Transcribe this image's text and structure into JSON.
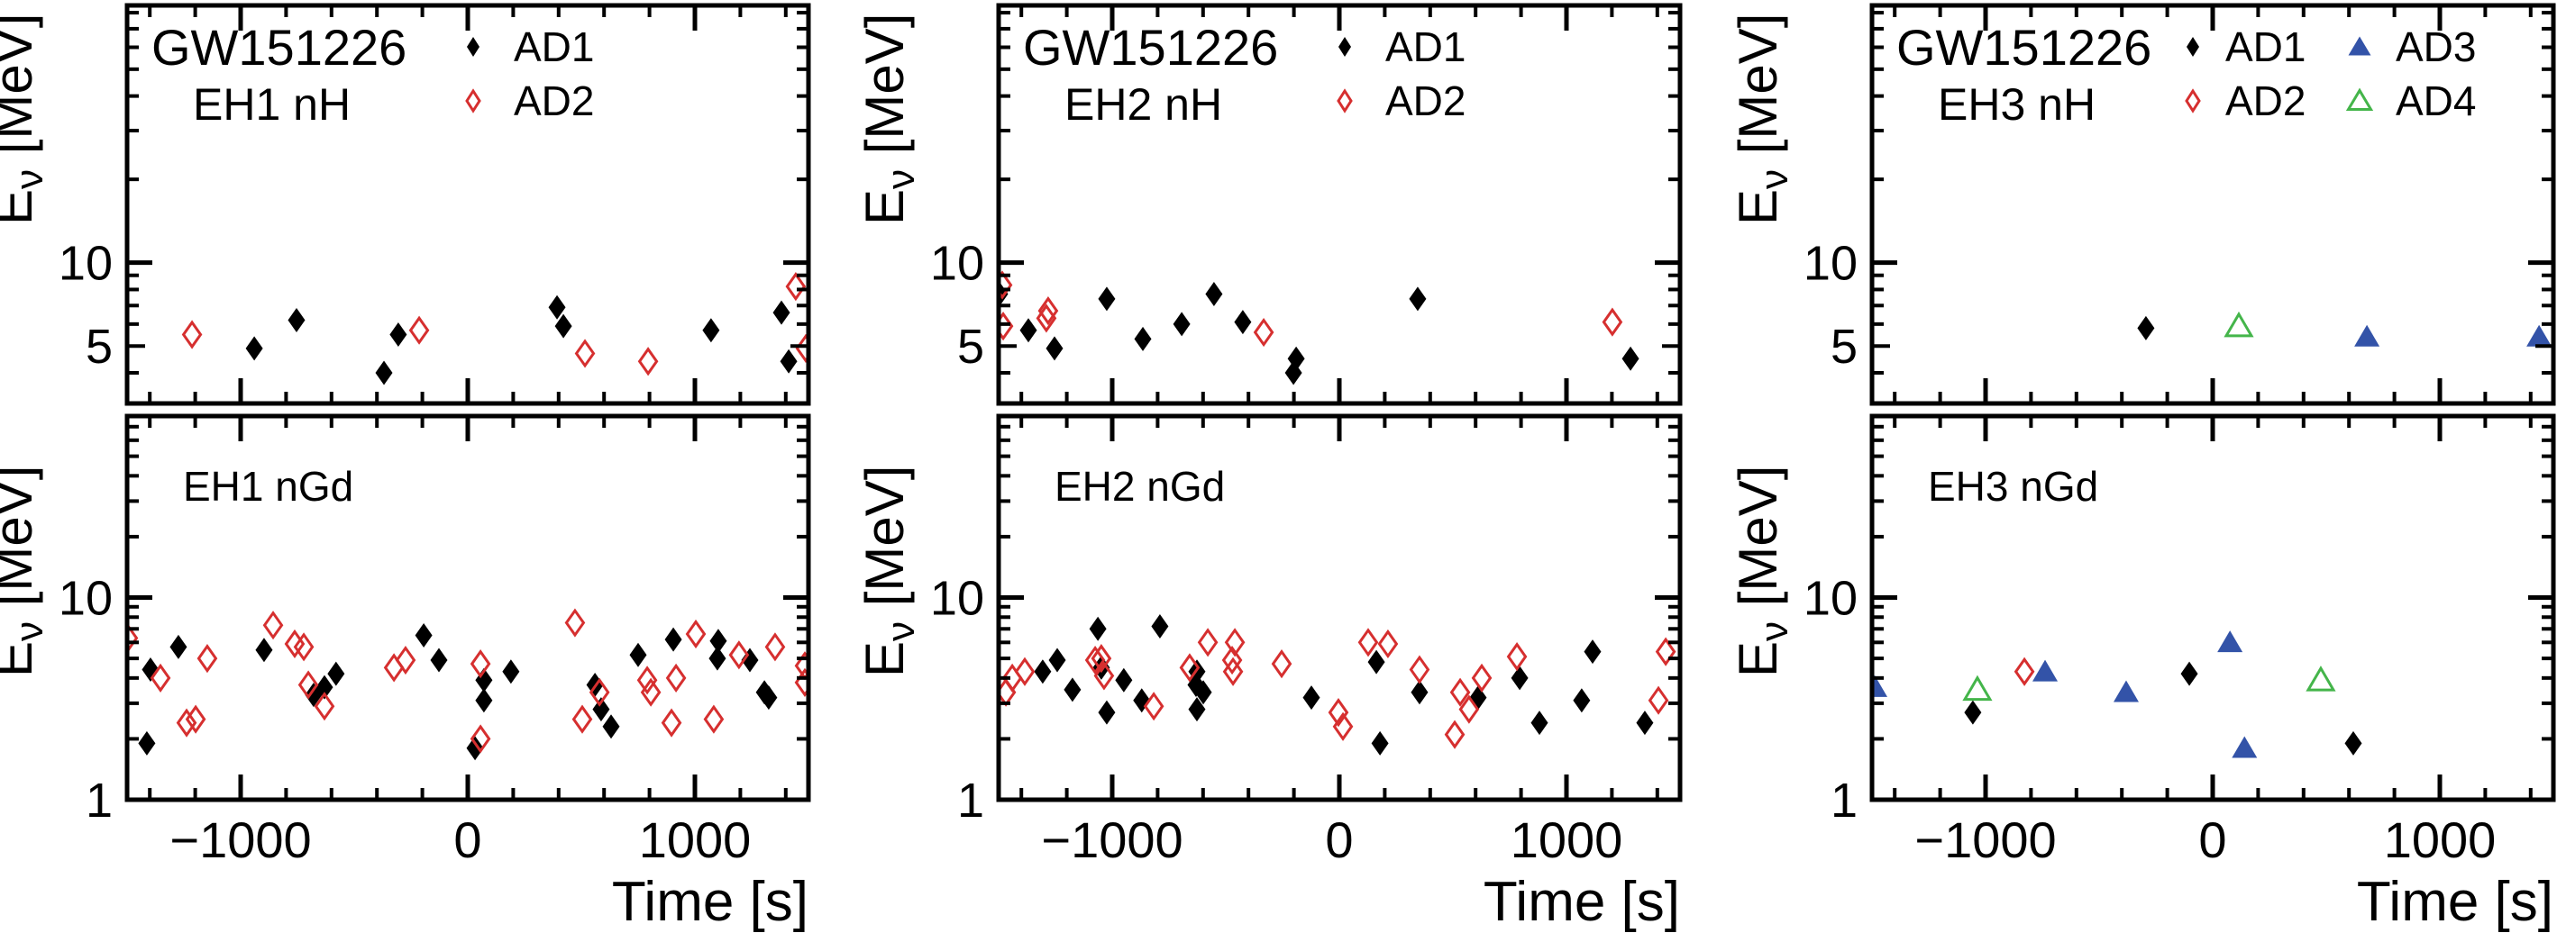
{
  "figure": {
    "event": "GW151226",
    "event_color": "#3E5CC0",
    "xlabel": "Time [s]",
    "ylabel": {
      "base": "E",
      "sub": "ν",
      "unit": " [MeV]"
    },
    "background": "#FFFFFF",
    "frame_color": "#000000"
  },
  "legend": {
    "entries": [
      {
        "detector": "AD1",
        "marker": "filled-diamond",
        "color": "#000000"
      },
      {
        "detector": "AD2",
        "marker": "open-diamond",
        "color": "#D62F2F"
      },
      {
        "detector": "AD3",
        "marker": "filled-triangle",
        "color": "#3353A8"
      },
      {
        "detector": "AD4",
        "marker": "open-triangle",
        "color": "#44B54A"
      }
    ]
  },
  "chart_data": {
    "type": "scatter",
    "title": "GW151226",
    "xlabel": "Time [s]",
    "ylabel": "Eν [MeV]",
    "x_range": [
      -1500,
      1500
    ],
    "x_major_ticks": [
      -1000,
      0,
      1000
    ],
    "x_tick_labels": [
      "−1000",
      "0",
      "1000"
    ],
    "x_minor_step": 200,
    "y_scale": "log",
    "rows": {
      "top": {
        "y_range": [
          3.1,
          85
        ]
      },
      "bottom": {
        "y_range": [
          1,
          79
        ]
      }
    },
    "markers": {
      "AD1": {
        "shape": "diamond",
        "fill": "#000000",
        "stroke": "none",
        "stroke_width": 0
      },
      "AD2": {
        "shape": "diamond",
        "fill": "none",
        "stroke": "#D62F2F",
        "stroke_width": 3
      },
      "AD3": {
        "shape": "triangle",
        "fill": "#3353A8",
        "stroke": "none",
        "stroke_width": 0
      },
      "AD4": {
        "shape": "triangle",
        "fill": "none",
        "stroke": "#44B54A",
        "stroke_width": 3
      }
    },
    "panels": [
      {
        "id": "eh1-nh",
        "hall_label": "EH1 nH",
        "row": "top",
        "col": 0,
        "show_header": true,
        "y_tick_labels": [
          {
            "value": 10,
            "label": "10"
          },
          {
            "value": 5,
            "label": "5"
          }
        ],
        "legend_columns": [
          {
            "marker_dx": 384,
            "text_dx": 429,
            "entries": [
              "AD1",
              "AD2"
            ]
          }
        ],
        "series": [
          {
            "detector": "AD1",
            "points": [
              [
                -940,
                4.9
              ],
              [
                -754,
                6.2
              ],
              [
                -369,
                4.0
              ],
              [
                -306,
                5.5
              ],
              [
                393,
                6.9
              ],
              [
                421,
                5.9
              ],
              [
                1071,
                5.7
              ],
              [
                1381,
                6.6
              ],
              [
                1413,
                4.4
              ]
            ]
          },
          {
            "detector": "AD2",
            "points": [
              [
                -1214,
                5.5
              ],
              [
                -214,
                5.7
              ],
              [
                516,
                4.7
              ],
              [
                794,
                4.4
              ],
              [
                1444,
                8.2
              ],
              [
                1488,
                4.9
              ]
            ]
          }
        ]
      },
      {
        "id": "eh2-nh",
        "hall_label": "EH2 nH",
        "row": "top",
        "col": 1,
        "show_header": true,
        "y_tick_labels": [
          {
            "value": 10,
            "label": "10"
          },
          {
            "value": 5,
            "label": "5"
          }
        ],
        "legend_columns": [
          {
            "marker_dx": 384,
            "text_dx": 429,
            "entries": [
              "AD1",
              "AD2"
            ]
          }
        ],
        "series": [
          {
            "detector": "AD1",
            "points": [
              [
                -1496,
                7.7
              ],
              [
                -1369,
                5.7
              ],
              [
                -1254,
                4.9
              ],
              [
                -1024,
                7.4
              ],
              [
                -865,
                5.3
              ],
              [
                -694,
                6.0
              ],
              [
                -552,
                7.7
              ],
              [
                -425,
                6.1
              ],
              [
                -202,
                4.0
              ],
              [
                -190,
                4.5
              ],
              [
                345,
                7.4
              ],
              [
                1282,
                4.5
              ]
            ]
          },
          {
            "detector": "AD2",
            "points": [
              [
                -1484,
                8.3
              ],
              [
                -1480,
                5.9
              ],
              [
                -1290,
                6.3
              ],
              [
                -1282,
                6.7
              ],
              [
                -333,
                5.6
              ],
              [
                1202,
                6.1
              ]
            ]
          }
        ]
      },
      {
        "id": "eh3-nh",
        "hall_label": "EH3 nH",
        "row": "top",
        "col": 2,
        "show_header": true,
        "y_tick_labels": [
          {
            "value": 10,
            "label": "10"
          },
          {
            "value": 5,
            "label": "5"
          }
        ],
        "legend_columns": [
          {
            "marker_dx": 356,
            "text_dx": 392,
            "entries": [
              "AD1",
              "AD2"
            ]
          },
          {
            "marker_dx": 541,
            "text_dx": 581,
            "entries": [
              "AD3",
              "AD4"
            ]
          }
        ],
        "series": [
          {
            "detector": "AD1",
            "points": [
              [
                -294,
                5.8
              ]
            ]
          },
          {
            "detector": "AD3",
            "points": [
              [
                679,
                5.4
              ],
              [
                1437,
                5.4
              ]
            ]
          },
          {
            "detector": "AD4",
            "points": [
              [
                115,
                5.9
              ]
            ]
          }
        ]
      },
      {
        "id": "eh1-ngd",
        "hall_label": "EH1 nGd",
        "row": "bottom",
        "col": 0,
        "show_header": false,
        "y_tick_labels": [
          {
            "value": 10,
            "label": "10"
          },
          {
            "value": 1,
            "label": "1"
          }
        ],
        "legend_columns": [],
        "series": [
          {
            "detector": "AD1",
            "points": [
              [
                -1413,
                1.9
              ],
              [
                -1397,
                4.4
              ],
              [
                -1274,
                5.7
              ],
              [
                -897,
                5.5
              ],
              [
                -679,
                3.3
              ],
              [
                -631,
                3.6
              ],
              [
                -580,
                4.2
              ],
              [
                -194,
                6.5
              ],
              [
                -127,
                4.9
              ],
              [
                32,
                1.8
              ],
              [
                71,
                3.9
              ],
              [
                71,
                3.1
              ],
              [
                190,
                4.3
              ],
              [
                560,
                3.7
              ],
              [
                587,
                2.8
              ],
              [
                631,
                2.3
              ],
              [
                750,
                5.2
              ],
              [
                905,
                6.2
              ],
              [
                1099,
                5.0
              ],
              [
                1103,
                6.1
              ],
              [
                1242,
                4.9
              ],
              [
                1306,
                3.4
              ],
              [
                1325,
                3.2
              ]
            ]
          },
          {
            "detector": "AD2",
            "points": [
              [
                -1496,
                6.3
              ],
              [
                -1353,
                4.0
              ],
              [
                -1238,
                2.4
              ],
              [
                -1198,
                2.5
              ],
              [
                -1147,
                5.0
              ],
              [
                -857,
                7.3
              ],
              [
                -762,
                5.9
              ],
              [
                -722,
                5.7
              ],
              [
                -702,
                3.7
              ],
              [
                -631,
                2.9
              ],
              [
                -325,
                4.5
              ],
              [
                -274,
                4.9
              ],
              [
                56,
                4.7
              ],
              [
                56,
                2.0
              ],
              [
                472,
                7.5
              ],
              [
                504,
                2.5
              ],
              [
                580,
                3.4
              ],
              [
                790,
                3.9
              ],
              [
                806,
                3.4
              ],
              [
                897,
                2.4
              ],
              [
                917,
                4.0
              ],
              [
                1004,
                6.6
              ],
              [
                1083,
                2.5
              ],
              [
                1194,
                5.2
              ],
              [
                1353,
                5.7
              ],
              [
                1484,
                4.6
              ],
              [
                1484,
                3.8
              ]
            ]
          }
        ]
      },
      {
        "id": "eh2-ngd",
        "hall_label": "EH2 nGd",
        "row": "bottom",
        "col": 1,
        "show_header": false,
        "y_tick_labels": [
          {
            "value": 10,
            "label": "10"
          },
          {
            "value": 1,
            "label": "1"
          }
        ],
        "legend_columns": [],
        "series": [
          {
            "detector": "AD1",
            "points": [
              [
                -1306,
                4.3
              ],
              [
                -1242,
                4.9
              ],
              [
                -1175,
                3.5
              ],
              [
                -1063,
                7.0
              ],
              [
                -1048,
                4.5
              ],
              [
                -1024,
                2.7
              ],
              [
                -949,
                3.9
              ],
              [
                -870,
                3.1
              ],
              [
                -790,
                7.2
              ],
              [
                -631,
                3.7
              ],
              [
                -627,
                4.3
              ],
              [
                -627,
                2.8
              ],
              [
                -599,
                3.4
              ],
              [
                -123,
                3.2
              ],
              [
                163,
                4.8
              ],
              [
                179,
                1.9
              ],
              [
                353,
                3.4
              ],
              [
                611,
                3.2
              ],
              [
                794,
                4.0
              ],
              [
                881,
                2.4
              ],
              [
                1067,
                3.1
              ],
              [
                1115,
                5.4
              ],
              [
                1345,
                2.4
              ]
            ]
          },
          {
            "detector": "AD2",
            "points": [
              [
                -1468,
                3.4
              ],
              [
                -1440,
                4.0
              ],
              [
                -1385,
                4.3
              ],
              [
                -1075,
                4.9
              ],
              [
                -1048,
                5.0
              ],
              [
                -1036,
                4.1
              ],
              [
                -817,
                2.9
              ],
              [
                -659,
                4.5
              ],
              [
                -579,
                6.0
              ],
              [
                -472,
                4.9
              ],
              [
                -468,
                4.3
              ],
              [
                -460,
                6.0
              ],
              [
                -254,
                4.7
              ],
              [
                -4,
                2.7
              ],
              [
                16,
                2.3
              ],
              [
                127,
                6.0
              ],
              [
                214,
                5.9
              ],
              [
                353,
                4.4
              ],
              [
                508,
                2.1
              ],
              [
                532,
                3.4
              ],
              [
                571,
                2.8
              ],
              [
                627,
                4.0
              ],
              [
                782,
                5.1
              ],
              [
                1405,
                3.1
              ],
              [
                1437,
                5.4
              ]
            ]
          }
        ]
      },
      {
        "id": "eh3-ngd",
        "hall_label": "EH3 nGd",
        "row": "bottom",
        "col": 2,
        "show_header": false,
        "y_tick_labels": [
          {
            "value": 10,
            "label": "10"
          },
          {
            "value": 1,
            "label": "1"
          }
        ],
        "legend_columns": [],
        "series": [
          {
            "detector": "AD1",
            "points": [
              [
                -1056,
                2.7
              ],
              [
                -103,
                4.2
              ],
              [
                619,
                1.9
              ]
            ]
          },
          {
            "detector": "AD2",
            "points": [
              [
                -829,
                4.3
              ]
            ]
          },
          {
            "detector": "AD3",
            "points": [
              [
                -1488,
                3.6
              ],
              [
                -738,
                4.3
              ],
              [
                -381,
                3.4
              ],
              [
                76,
                6.0
              ],
              [
                140,
                1.8
              ]
            ]
          },
          {
            "detector": "AD4",
            "points": [
              [
                -1036,
                3.5
              ],
              [
                476,
                3.9
              ]
            ]
          }
        ]
      }
    ]
  }
}
